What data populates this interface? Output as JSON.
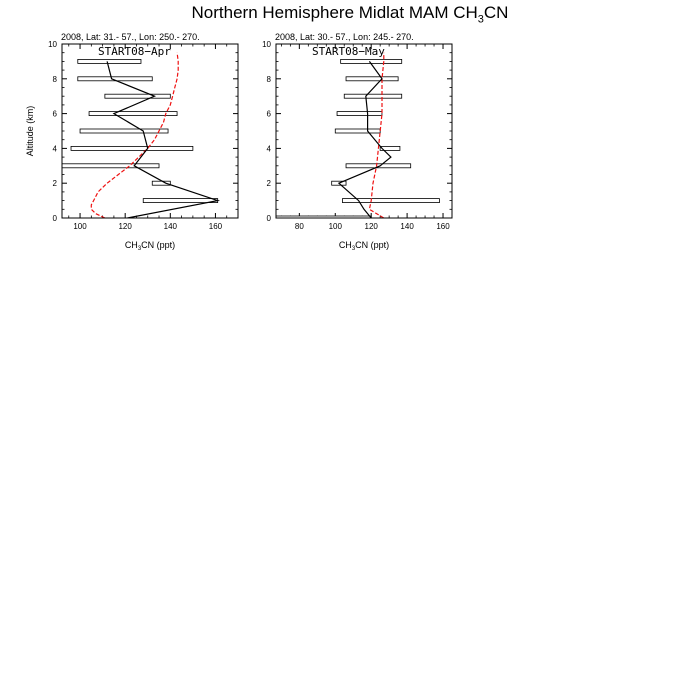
{
  "figure": {
    "title_main": "Northern Hemisphere Midlat MAM CH",
    "title_sub": "3",
    "title_tail": "CN"
  },
  "chart_data": [
    {
      "type": "line",
      "subtitle": "2008, Lat:  31.- 57., Lon: 250.- 270.",
      "panel_label": "START08−Apr",
      "xlabel": "CH3CN (ppt)",
      "ylabel": "Altitude (km)",
      "xlim": [
        92,
        170
      ],
      "ylim": [
        0,
        10
      ],
      "x_ticks": [
        100,
        120,
        140,
        160
      ],
      "y_ticks": [
        0,
        2,
        4,
        6,
        8,
        10
      ],
      "observed_profile": {
        "altitude_km": [
          0.0,
          1.0,
          2.0,
          3.0,
          4.0,
          5.0,
          6.0,
          7.0,
          8.0,
          9.0
        ],
        "ch3cn_ppt": [
          121,
          161,
          138,
          124,
          130,
          128,
          115,
          133,
          114,
          112
        ]
      },
      "observed_range_boxes": [
        {
          "altitude_km": 1.0,
          "min": 128,
          "max": 161
        },
        {
          "altitude_km": 2.0,
          "min": 132,
          "max": 140
        },
        {
          "altitude_km": 3.0,
          "min": 92,
          "max": 135
        },
        {
          "altitude_km": 4.0,
          "min": 96,
          "max": 150
        },
        {
          "altitude_km": 5.0,
          "min": 100,
          "max": 139
        },
        {
          "altitude_km": 6.0,
          "min": 104,
          "max": 143
        },
        {
          "altitude_km": 7.0,
          "min": 111,
          "max": 140
        },
        {
          "altitude_km": 8.0,
          "min": 99,
          "max": 132
        },
        {
          "altitude_km": 9.0,
          "min": 99,
          "max": 127
        }
      ],
      "model_profile": {
        "altitude_km": [
          0.0,
          0.25,
          0.5,
          0.75,
          1.0,
          1.5,
          2.0,
          2.5,
          3.0,
          3.5,
          4.0,
          4.5,
          5.0,
          5.5,
          6.0,
          6.5,
          7.0,
          7.5,
          8.0,
          8.5,
          9.0,
          9.5
        ],
        "ch3cn_ppt": [
          111,
          107,
          105,
          105,
          106,
          108,
          112,
          117,
          122,
          126,
          130,
          133,
          135,
          137,
          138,
          140,
          141,
          142,
          143,
          143.5,
          143.5,
          143
        ]
      }
    },
    {
      "type": "line",
      "subtitle": "2008, Lat:  30.- 57., Lon: 245.- 270.",
      "panel_label": "START08−May",
      "xlabel": "CH3CN (ppt)",
      "ylabel": "",
      "xlim": [
        67,
        165
      ],
      "ylim": [
        0,
        10
      ],
      "x_ticks": [
        80,
        100,
        120,
        140,
        160
      ],
      "y_ticks": [
        0,
        2,
        4,
        6,
        8,
        10
      ],
      "observed_profile": {
        "altitude_km": [
          0.0,
          0.5,
          1.0,
          2.0,
          3.0,
          3.5,
          4.0,
          5.0,
          6.0,
          7.0,
          8.0,
          9.0
        ],
        "ch3cn_ppt": [
          120,
          116,
          113,
          102,
          125,
          131,
          126,
          118,
          118,
          117,
          126,
          119
        ]
      },
      "observed_range_boxes": [
        {
          "altitude_km": 0.0,
          "min": 67,
          "max": 120
        },
        {
          "altitude_km": 1.0,
          "min": 104,
          "max": 158
        },
        {
          "altitude_km": 2.0,
          "min": 98,
          "max": 106
        },
        {
          "altitude_km": 3.0,
          "min": 106,
          "max": 142
        },
        {
          "altitude_km": 4.0,
          "min": 125,
          "max": 136
        },
        {
          "altitude_km": 5.0,
          "min": 100,
          "max": 125
        },
        {
          "altitude_km": 6.0,
          "min": 101,
          "max": 126
        },
        {
          "altitude_km": 7.0,
          "min": 105,
          "max": 137
        },
        {
          "altitude_km": 8.0,
          "min": 106,
          "max": 135
        },
        {
          "altitude_km": 9.0,
          "min": 103,
          "max": 137
        }
      ],
      "model_profile": {
        "altitude_km": [
          0.0,
          0.5,
          1.0,
          2.0,
          3.0,
          4.0,
          5.0,
          6.0,
          7.0,
          8.0,
          9.0,
          9.5
        ],
        "ch3cn_ppt": [
          127,
          119,
          120,
          121,
          123,
          124,
          125,
          126,
          126,
          126,
          127,
          127
        ]
      }
    }
  ]
}
